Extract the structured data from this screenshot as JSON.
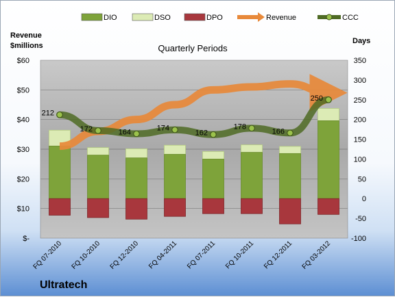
{
  "chart_data": {
    "type": "bar",
    "title": "Quarterly Periods",
    "company": "Ultratech",
    "left_axis_label_line1": "Revenue",
    "left_axis_label_line2": "$millions",
    "right_axis_label": "Days",
    "categories": [
      "FQ 07-2010",
      "FQ 10-2010",
      "FQ 12-2010",
      "FQ 04-2011",
      "FQ 07-2011",
      "FQ 10-2011",
      "FQ 12-2011",
      "FQ 03-2012"
    ],
    "left_ticks": [
      "$-",
      "$10",
      "$20",
      "$30",
      "$40",
      "$50",
      "$60"
    ],
    "right_ticks": [
      "-100",
      "-50",
      "0",
      "50",
      "100",
      "150",
      "200",
      "250",
      "300",
      "350"
    ],
    "left_ylim": [
      0,
      60
    ],
    "right_ylim": [
      -100,
      350
    ],
    "legend_position": "top",
    "series": [
      {
        "name": "DIO",
        "kind": "bar",
        "axis": "right",
        "color": "#7ea33a",
        "values": [
          133,
          110,
          103,
          112,
          100,
          117,
          114,
          197
        ]
      },
      {
        "name": "DSO",
        "kind": "bar-stacked",
        "axis": "right",
        "color": "#dcebb5",
        "values": [
          40,
          19,
          23,
          23,
          19,
          19,
          18,
          31
        ]
      },
      {
        "name": "DPO",
        "kind": "bar",
        "axis": "right",
        "color": "#a8373d",
        "values": [
          -42,
          -48,
          -52,
          -45,
          -38,
          -38,
          -64,
          -40
        ]
      },
      {
        "name": "Revenue",
        "kind": "line",
        "axis": "left",
        "color": "#e8893a",
        "values": [
          31,
          36,
          40,
          45,
          50,
          51,
          52,
          49
        ]
      },
      {
        "name": "CCC",
        "kind": "line",
        "axis": "right",
        "color": "#5a7a2a",
        "values": [
          212,
          172,
          164,
          174,
          162,
          178,
          166,
          250
        ]
      }
    ],
    "ccc_labels": [
      "212",
      "172",
      "164",
      "174",
      "162",
      "178",
      "166",
      "250"
    ],
    "grid": true
  }
}
